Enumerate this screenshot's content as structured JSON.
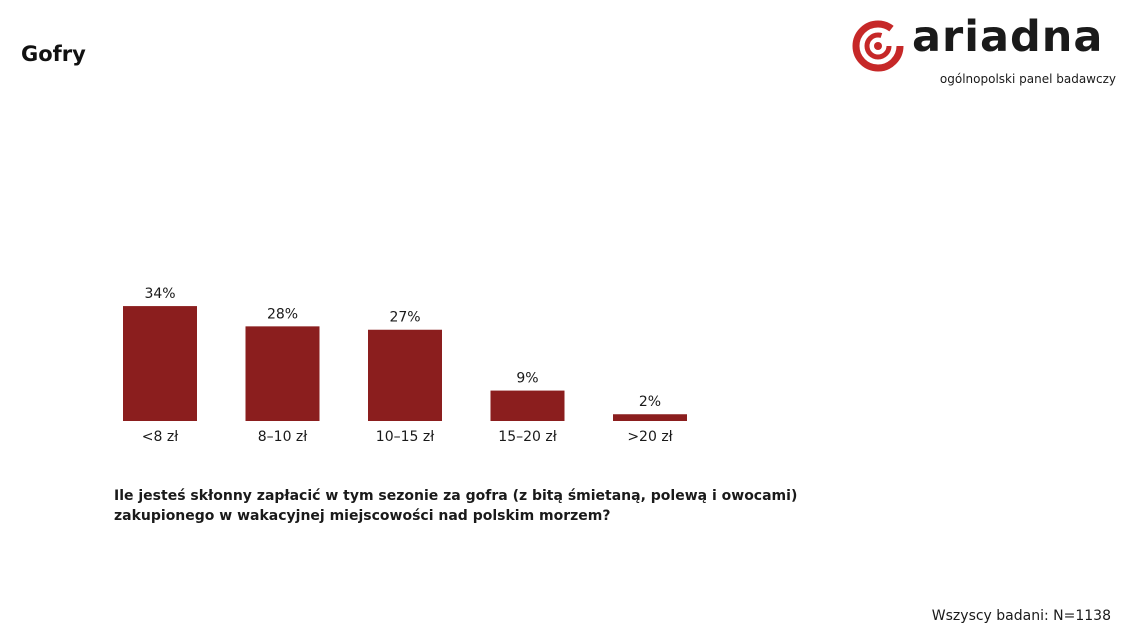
{
  "page": {
    "title": "Gofry",
    "question": "Ile jesteś skłonny zapłacić w tym sezonie za gofra (z bitą śmietaną, polewą i owocami) zakupionego w wakacyjnej miejscowości nad polskim morzem?",
    "footer_note": "Wszyscy badani: N=1138"
  },
  "logo": {
    "wordmark": "ariadna",
    "tagline": "ogólnopolski panel badawczy",
    "accent_color": "#c62828"
  },
  "chart_data": {
    "type": "bar",
    "categories": [
      "<8 zł",
      "8–10 zł",
      "10–15 zł",
      "15–20 zł",
      ">20 zł"
    ],
    "values": [
      34,
      28,
      27,
      9,
      2
    ],
    "value_labels": [
      "34%",
      "28%",
      "27%",
      "9%",
      "2%"
    ],
    "unit": "%",
    "bar_color": "#8b1e1e",
    "grid": false,
    "legend": "none"
  }
}
